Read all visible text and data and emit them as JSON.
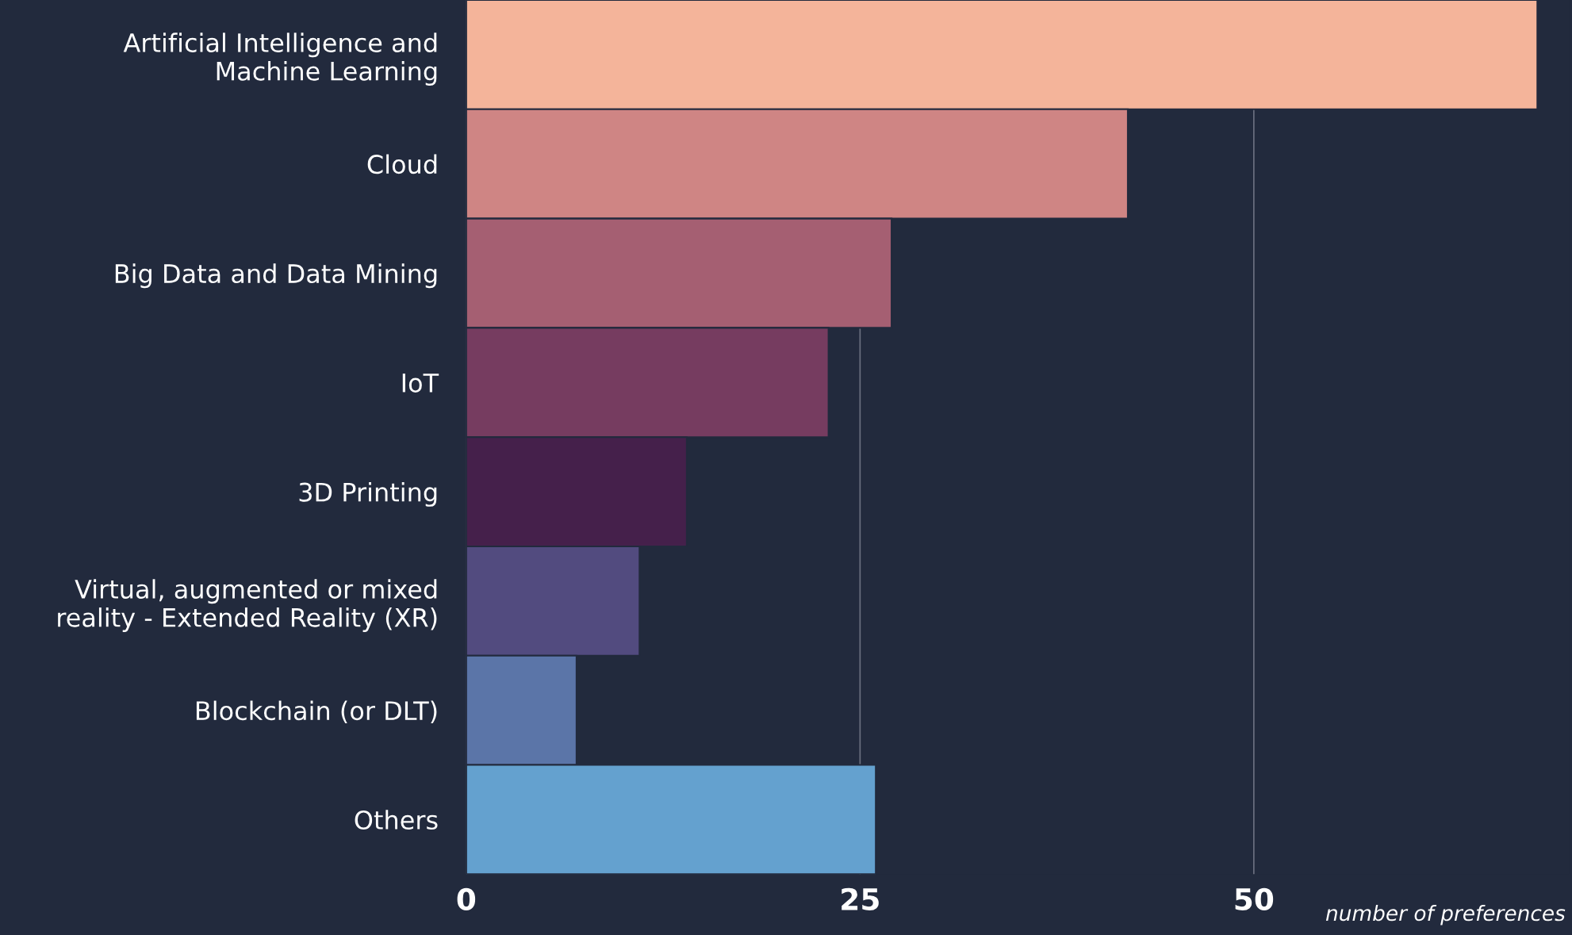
{
  "chart_data": {
    "type": "bar",
    "orientation": "horizontal",
    "categories": [
      "Artificial Intelligence and\nMachine Learning",
      "Cloud",
      "Big Data and Data Mining",
      "IoT",
      "3D Printing",
      "Virtual, augmented or mixed\nreality - Extended Reality (XR)",
      "Blockchain (or DLT)",
      "Others"
    ],
    "values": [
      68,
      42,
      27,
      23,
      14,
      11,
      7,
      26
    ],
    "colors": [
      "#f4b49a",
      "#cf8584",
      "#a55f72",
      "#763c60",
      "#45204b",
      "#524b7f",
      "#5b75a8",
      "#64a1cf"
    ],
    "xlim": [
      0,
      70
    ],
    "xticks": [
      0,
      25,
      50
    ],
    "xlabel": "number of preferences",
    "grid": "x"
  }
}
